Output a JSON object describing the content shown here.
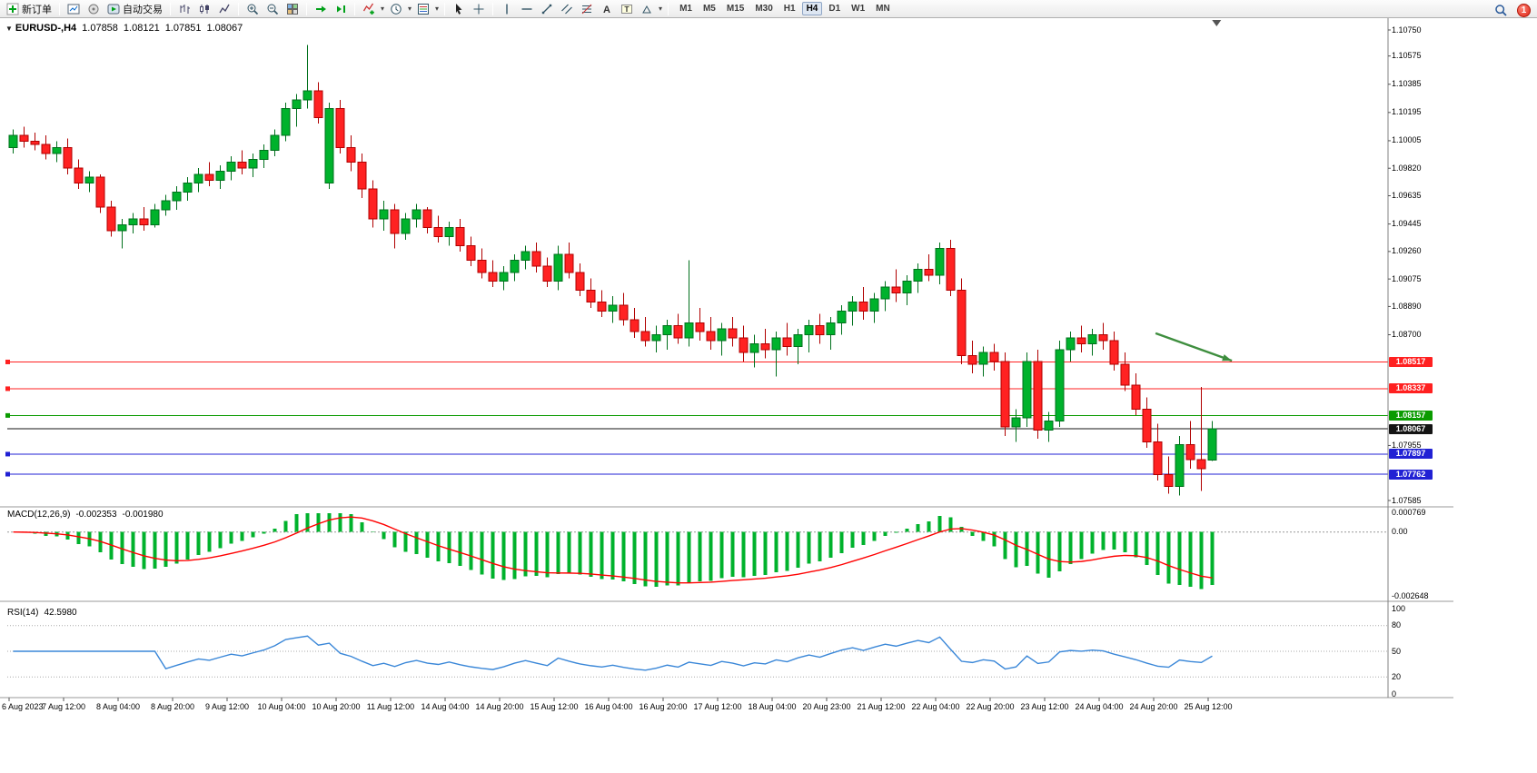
{
  "toolbar": {
    "new_order_label": "新订单",
    "auto_trading_label": "自动交易",
    "icons": [
      "new-order",
      "new-chart",
      "profiles",
      "auto-trading",
      "bar-chart",
      "candlestick-chart",
      "line-chart",
      "zoom-in",
      "zoom-out",
      "tile-windows",
      "auto-scroll",
      "chart-shift",
      "indicators",
      "periods",
      "templates",
      "cursor",
      "crosshair",
      "vertical-line",
      "horizontal-line",
      "trendline",
      "equidistant-channel",
      "fibonacci",
      "text",
      "text-label",
      "shapes",
      "search",
      "notifications"
    ],
    "timeframes": [
      "M1",
      "M5",
      "M15",
      "M30",
      "H1",
      "H4",
      "D1",
      "W1",
      "MN"
    ],
    "active_timeframe": "H4",
    "notification_count": "1"
  },
  "symbol_bar": {
    "symbol": "EURUSD-,H4",
    "open": "1.07858",
    "high": "1.08121",
    "low": "1.07851",
    "close": "1.08067"
  },
  "price_axis": {
    "ticks": [
      "1.10750",
      "1.10575",
      "1.10385",
      "1.10195",
      "1.10005",
      "1.09820",
      "1.09635",
      "1.09445",
      "1.09260",
      "1.09075",
      "1.08890",
      "1.08700",
      "1.07955",
      "1.07585"
    ]
  },
  "indicators": {
    "macd": {
      "label": "MACD(12,26,9)",
      "value_main": "-0.002353",
      "value_signal": "-0.001980",
      "params": {
        "fast": 12,
        "slow": 26,
        "signal": 9
      },
      "axis_max_label": "0.000769",
      "axis_zero_label": "0.00",
      "axis_min_label": "-0.002648",
      "range_max": 0.000769,
      "range_min": -0.002648,
      "histogram_color": "#00b22c",
      "signal_color": "#ff0000"
    },
    "rsi": {
      "label": "RSI(14)",
      "value": "42.5980",
      "period": 14,
      "levels": [
        80,
        50,
        20
      ],
      "axis_labels": [
        "100",
        "80",
        "50",
        "20",
        "0"
      ],
      "line_color": "#3a87d8"
    }
  },
  "chart_data": {
    "type": "candlestick",
    "title": "EURUSD- H4",
    "price_range": {
      "max": 1.1075,
      "min": 1.07585
    },
    "label_every_n_candles": 5,
    "time_labels": [
      "6 Aug 2023",
      "7 Aug 12:00",
      "8 Aug 04:00",
      "8 Aug 20:00",
      "9 Aug 12:00",
      "10 Aug 04:00",
      "10 Aug 20:00",
      "11 Aug 12:00",
      "14 Aug 04:00",
      "14 Aug 20:00",
      "15 Aug 12:00",
      "16 Aug 04:00",
      "16 Aug 20:00",
      "17 Aug 12:00",
      "18 Aug 04:00",
      "20 Aug 23:00",
      "21 Aug 12:00",
      "22 Aug 04:00",
      "22 Aug 20:00",
      "23 Aug 12:00",
      "24 Aug 04:00",
      "24 Aug 20:00",
      "25 Aug 12:00"
    ],
    "candles": [
      [
        1.0996,
        1.1008,
        1.0992,
        1.1004
      ],
      [
        1.1004,
        1.101,
        1.0996,
        1.1
      ],
      [
        1.1,
        1.1006,
        1.0994,
        1.0998
      ],
      [
        1.0998,
        1.1004,
        1.0988,
        1.0992
      ],
      [
        1.0992,
        1.1,
        1.0986,
        1.0996
      ],
      [
        1.0996,
        1.1002,
        1.0978,
        1.0982
      ],
      [
        1.0982,
        1.0988,
        1.0968,
        1.0972
      ],
      [
        1.0972,
        1.098,
        1.0966,
        1.0976
      ],
      [
        1.0976,
        1.0978,
        1.0952,
        1.0956
      ],
      [
        1.0956,
        1.096,
        1.0936,
        1.094
      ],
      [
        1.094,
        1.0948,
        1.0928,
        1.0944
      ],
      [
        1.0944,
        1.0952,
        1.0938,
        1.0948
      ],
      [
        1.0948,
        1.0956,
        1.094,
        1.0944
      ],
      [
        1.0944,
        1.0958,
        1.0942,
        1.0954
      ],
      [
        1.0954,
        1.0964,
        1.095,
        1.096
      ],
      [
        1.096,
        1.097,
        1.0954,
        1.0966
      ],
      [
        1.0966,
        1.0976,
        1.096,
        1.0972
      ],
      [
        1.0972,
        1.0982,
        1.0966,
        1.0978
      ],
      [
        1.0978,
        1.0986,
        1.097,
        1.0974
      ],
      [
        1.0974,
        1.0984,
        1.0968,
        1.098
      ],
      [
        1.098,
        1.099,
        1.0974,
        1.0986
      ],
      [
        1.0986,
        1.0994,
        1.0978,
        1.0982
      ],
      [
        1.0982,
        1.0992,
        1.0976,
        1.0988
      ],
      [
        1.0988,
        1.0998,
        1.0982,
        1.0994
      ],
      [
        1.0994,
        1.1008,
        1.099,
        1.1004
      ],
      [
        1.1004,
        1.1026,
        1.1,
        1.1022
      ],
      [
        1.1022,
        1.1032,
        1.101,
        1.1028
      ],
      [
        1.1028,
        1.1065,
        1.1022,
        1.1034
      ],
      [
        1.1034,
        1.104,
        1.1012,
        1.1016
      ],
      [
        1.0972,
        1.1026,
        1.0968,
        1.1022
      ],
      [
        1.1022,
        1.1028,
        1.0992,
        1.0996
      ],
      [
        1.0996,
        1.1004,
        1.098,
        1.0986
      ],
      [
        1.0986,
        1.0992,
        1.0962,
        1.0968
      ],
      [
        1.0968,
        1.0974,
        1.0942,
        1.0948
      ],
      [
        1.0948,
        1.096,
        1.094,
        1.0954
      ],
      [
        1.0954,
        1.0958,
        1.0928,
        1.0938
      ],
      [
        1.0938,
        1.0952,
        1.0934,
        1.0948
      ],
      [
        1.0948,
        1.0958,
        1.0942,
        1.0954
      ],
      [
        1.0954,
        1.0956,
        1.0938,
        1.0942
      ],
      [
        1.0942,
        1.095,
        1.0932,
        1.0936
      ],
      [
        1.0936,
        1.0946,
        1.093,
        1.0942
      ],
      [
        1.0942,
        1.0948,
        1.0926,
        1.093
      ],
      [
        1.093,
        1.0936,
        1.0916,
        1.092
      ],
      [
        1.092,
        1.0928,
        1.0908,
        1.0912
      ],
      [
        1.0912,
        1.092,
        1.0902,
        1.0906
      ],
      [
        1.0906,
        1.0916,
        1.09,
        1.0912
      ],
      [
        1.0912,
        1.0924,
        1.0906,
        1.092
      ],
      [
        1.092,
        1.093,
        1.0914,
        1.0926
      ],
      [
        1.0926,
        1.0932,
        1.0912,
        1.0916
      ],
      [
        1.0916,
        1.0922,
        1.0902,
        1.0906
      ],
      [
        1.0906,
        1.093,
        1.09,
        1.0924
      ],
      [
        1.0924,
        1.0932,
        1.0908,
        1.0912
      ],
      [
        1.0912,
        1.0918,
        1.0896,
        1.09
      ],
      [
        1.09,
        1.0908,
        1.0888,
        1.0892
      ],
      [
        1.0892,
        1.09,
        1.0882,
        1.0886
      ],
      [
        1.0886,
        1.0896,
        1.0878,
        1.089
      ],
      [
        1.089,
        1.0898,
        1.0876,
        1.088
      ],
      [
        1.088,
        1.0888,
        1.0868,
        1.0872
      ],
      [
        1.0872,
        1.0882,
        1.0862,
        1.0866
      ],
      [
        1.0866,
        1.0876,
        1.0858,
        1.087
      ],
      [
        1.087,
        1.088,
        1.086,
        1.0876
      ],
      [
        1.0876,
        1.0884,
        1.0864,
        1.0868
      ],
      [
        1.0868,
        1.092,
        1.0862,
        1.0878
      ],
      [
        1.0878,
        1.0888,
        1.0866,
        1.0872
      ],
      [
        1.0872,
        1.0882,
        1.086,
        1.0866
      ],
      [
        1.0866,
        1.0878,
        1.0856,
        1.0874
      ],
      [
        1.0874,
        1.0882,
        1.0862,
        1.0868
      ],
      [
        1.0868,
        1.0876,
        1.0852,
        1.0858
      ],
      [
        1.0858,
        1.087,
        1.0848,
        1.0864
      ],
      [
        1.0864,
        1.0874,
        1.0854,
        1.086
      ],
      [
        1.086,
        1.0872,
        1.0842,
        1.0868
      ],
      [
        1.0868,
        1.0878,
        1.0856,
        1.0862
      ],
      [
        1.0862,
        1.0874,
        1.085,
        1.087
      ],
      [
        1.087,
        1.088,
        1.0858,
        1.0876
      ],
      [
        1.0876,
        1.0884,
        1.0864,
        1.087
      ],
      [
        1.087,
        1.0882,
        1.086,
        1.0878
      ],
      [
        1.0878,
        1.089,
        1.087,
        1.0886
      ],
      [
        1.0886,
        1.0896,
        1.0876,
        1.0892
      ],
      [
        1.0892,
        1.0902,
        1.088,
        1.0886
      ],
      [
        1.0886,
        1.0898,
        1.0878,
        1.0894
      ],
      [
        1.0894,
        1.0906,
        1.0886,
        1.0902
      ],
      [
        1.0902,
        1.0914,
        1.0892,
        1.0898
      ],
      [
        1.0898,
        1.091,
        1.089,
        1.0906
      ],
      [
        1.0906,
        1.0918,
        1.0898,
        1.0914
      ],
      [
        1.0914,
        1.0924,
        1.0906,
        1.091
      ],
      [
        1.091,
        1.0932,
        1.0904,
        1.0928
      ],
      [
        1.0928,
        1.0934,
        1.0896,
        1.09
      ],
      [
        1.09,
        1.0908,
        1.085,
        1.0856
      ],
      [
        1.0856,
        1.0866,
        1.0844,
        1.085
      ],
      [
        1.085,
        1.0862,
        1.0842,
        1.0858
      ],
      [
        1.0858,
        1.0864,
        1.0846,
        1.0852
      ],
      [
        1.0852,
        1.0858,
        1.0802,
        1.0808
      ],
      [
        1.0808,
        1.082,
        1.0798,
        1.0814
      ],
      [
        1.0814,
        1.0858,
        1.0808,
        1.0852
      ],
      [
        1.0852,
        1.086,
        1.08,
        1.0806
      ],
      [
        1.0806,
        1.0818,
        1.0798,
        1.0812
      ],
      [
        1.0812,
        1.0866,
        1.0808,
        1.086
      ],
      [
        1.086,
        1.0872,
        1.0852,
        1.0868
      ],
      [
        1.0868,
        1.0876,
        1.0858,
        1.0864
      ],
      [
        1.0864,
        1.0874,
        1.0856,
        1.087
      ],
      [
        1.087,
        1.0878,
        1.086,
        1.0866
      ],
      [
        1.0866,
        1.0872,
        1.0846,
        1.085
      ],
      [
        1.085,
        1.0858,
        1.0832,
        1.0836
      ],
      [
        1.0836,
        1.0844,
        1.0816,
        1.082
      ],
      [
        1.082,
        1.0828,
        1.0794,
        1.0798
      ],
      [
        1.0798,
        1.081,
        1.0772,
        1.0776
      ],
      [
        1.0776,
        1.0788,
        1.0763,
        1.0768
      ],
      [
        1.0768,
        1.0802,
        1.0762,
        1.0796
      ],
      [
        1.0796,
        1.0812,
        1.078,
        1.0786
      ],
      [
        1.0786,
        1.0835,
        1.0765,
        1.078
      ],
      [
        1.07858,
        1.08121,
        1.07851,
        1.08067
      ]
    ],
    "horizontal_lines": [
      {
        "price": 1.08517,
        "label": "1.08517",
        "color": "#ff2020",
        "anchor": true
      },
      {
        "price": 1.08337,
        "label": "1.08337",
        "color": "#ff2020",
        "anchor": true
      },
      {
        "price": 1.08157,
        "label": "1.08157",
        "color": "#0a9b00",
        "anchor": true
      },
      {
        "price": 1.08067,
        "label": "1.08067",
        "color": "#141414",
        "anchor": false
      },
      {
        "price": 1.07897,
        "label": "1.07897",
        "color": "#2121d4",
        "anchor": true
      },
      {
        "price": 1.07762,
        "label": "1.07762",
        "color": "#2121d4",
        "anchor": true
      }
    ],
    "arrow": {
      "from_index": 104.8,
      "from_price": 1.0871,
      "to_index": 111.8,
      "to_price": 1.08525,
      "color": "#3e8e3e"
    },
    "shift_marker_index": 110.4,
    "colors": {
      "bull": "#00b22c",
      "bear": "#ff2222",
      "bull_edge": "#00701c",
      "bear_edge": "#b00000",
      "background": "#ffffff",
      "axis_line": "#808080",
      "separator": "#9a9a9a",
      "grid_levels": "#aaaaaa"
    }
  }
}
